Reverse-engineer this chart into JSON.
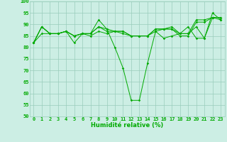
{
  "xlabel": "Humidité relative (%)",
  "background_color": "#cceee4",
  "line_color": "#00aa00",
  "grid_color": "#99ccbb",
  "ylim": [
    50,
    100
  ],
  "xlim": [
    -0.5,
    23.5
  ],
  "yticks": [
    50,
    55,
    60,
    65,
    70,
    75,
    80,
    85,
    90,
    95,
    100
  ],
  "xticks": [
    0,
    1,
    2,
    3,
    4,
    5,
    6,
    7,
    8,
    9,
    10,
    11,
    12,
    13,
    14,
    15,
    16,
    17,
    18,
    19,
    20,
    21,
    22,
    23
  ],
  "series": [
    [
      82,
      89,
      86,
      86,
      87,
      82,
      86,
      86,
      92,
      88,
      80,
      71,
      57,
      57,
      73,
      87,
      88,
      89,
      86,
      86,
      89,
      84,
      95,
      92
    ],
    [
      82,
      89,
      86,
      86,
      87,
      85,
      86,
      86,
      89,
      88,
      87,
      87,
      85,
      85,
      85,
      88,
      88,
      88,
      85,
      85,
      91,
      91,
      93,
      93
    ],
    [
      82,
      89,
      86,
      86,
      87,
      85,
      86,
      86,
      89,
      87,
      87,
      87,
      85,
      85,
      85,
      88,
      88,
      88,
      86,
      86,
      92,
      92,
      93,
      93
    ],
    [
      82,
      86,
      86,
      86,
      87,
      85,
      86,
      85,
      87,
      86,
      87,
      86,
      85,
      85,
      85,
      87,
      84,
      85,
      86,
      89,
      84,
      84,
      93,
      92
    ]
  ]
}
